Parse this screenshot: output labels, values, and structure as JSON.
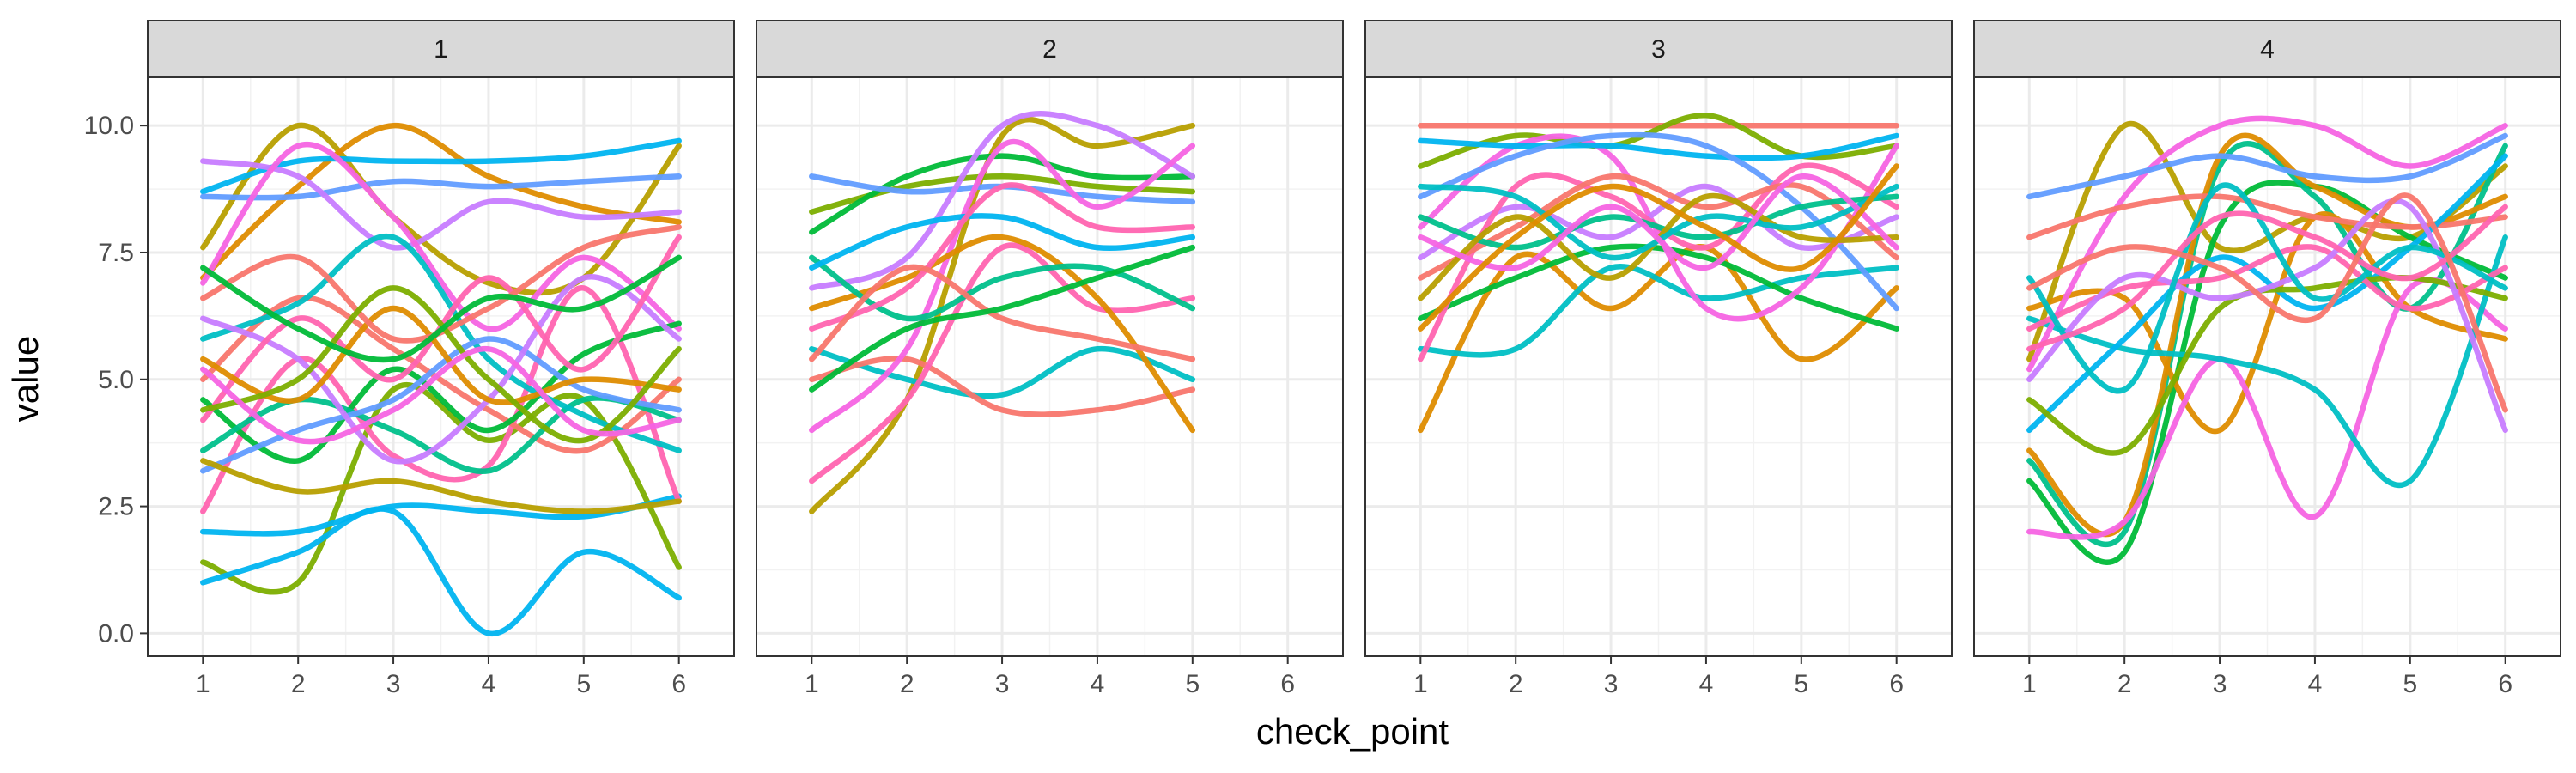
{
  "chart_data": {
    "type": "line",
    "facet_variable": "group",
    "xlabel": "check_point",
    "ylabel": "value",
    "x_ticks": [
      "1",
      "2",
      "3",
      "4",
      "5",
      "6"
    ],
    "y_ticks": [
      "0.0",
      "2.5",
      "5.0",
      "7.5",
      "10.0"
    ],
    "xlim": [
      0.42,
      6.58
    ],
    "ylim": [
      -0.45,
      10.95
    ],
    "grid": true,
    "smoothing": "spline",
    "legend": "none",
    "colors": [
      "#F8766D",
      "#DE8C00",
      "#B79F00",
      "#7CAE00",
      "#00BA38",
      "#00C08B",
      "#00BFC4",
      "#00B4F0",
      "#619CFF",
      "#C77CFF",
      "#F564E3",
      "#FF64B0"
    ],
    "strip_fill": "#d9d9d9",
    "panel_border": "#333333",
    "facets": [
      {
        "label": "1",
        "x": [
          1,
          2,
          3,
          4,
          5,
          6
        ],
        "series": [
          {
            "color": "#B79F00",
            "values": [
              7.6,
              10.0,
              8.2,
              6.9,
              7.0,
              9.6
            ]
          },
          {
            "color": "#DE8C00",
            "values": [
              7.0,
              8.8,
              10.0,
              9.0,
              8.4,
              8.1
            ]
          },
          {
            "color": "#7CAE00",
            "values": [
              1.4,
              1.0,
              4.8,
              3.8,
              4.6,
              1.3
            ]
          },
          {
            "color": "#00B4F0",
            "values": [
              1.0,
              1.6,
              2.4,
              0.0,
              1.6,
              0.7
            ]
          },
          {
            "color": "#00B4F0",
            "values": [
              2.0,
              2.0,
              2.5,
              2.4,
              2.3,
              2.7
            ]
          },
          {
            "color": "#00B4F0",
            "values": [
              8.7,
              9.3,
              9.3,
              9.3,
              9.4,
              9.7
            ]
          },
          {
            "color": "#619CFF",
            "values": [
              8.6,
              8.6,
              8.9,
              8.8,
              8.9,
              9.0
            ]
          },
          {
            "color": "#C77CFF",
            "values": [
              9.3,
              9.0,
              7.6,
              8.5,
              8.2,
              8.3
            ]
          },
          {
            "color": "#F564E3",
            "values": [
              6.9,
              9.6,
              8.2,
              6.0,
              7.4,
              6.0
            ]
          },
          {
            "color": "#FF64B0",
            "values": [
              2.4,
              5.4,
              3.5,
              3.3,
              6.8,
              2.6
            ]
          },
          {
            "color": "#F8766D",
            "values": [
              5.0,
              6.6,
              5.6,
              4.4,
              3.6,
              5.0
            ]
          },
          {
            "color": "#00BA38",
            "values": [
              4.6,
              3.4,
              5.2,
              4.0,
              5.5,
              6.1
            ]
          },
          {
            "color": "#00C08B",
            "values": [
              3.6,
              4.6,
              4.0,
              3.2,
              4.6,
              4.2
            ]
          },
          {
            "color": "#00BFC4",
            "values": [
              5.8,
              6.5,
              7.8,
              5.4,
              4.3,
              3.6
            ]
          },
          {
            "color": "#619CFF",
            "values": [
              3.2,
              4.0,
              4.6,
              5.8,
              4.8,
              4.4
            ]
          },
          {
            "color": "#C77CFF",
            "values": [
              6.2,
              5.4,
              3.4,
              4.6,
              7.0,
              5.8
            ]
          },
          {
            "color": "#FF64B0",
            "values": [
              4.2,
              6.2,
              5.0,
              7.0,
              5.2,
              7.8
            ]
          },
          {
            "color": "#B79F00",
            "values": [
              3.4,
              2.8,
              3.0,
              2.6,
              2.4,
              2.6
            ]
          },
          {
            "color": "#DE8C00",
            "values": [
              5.4,
              4.6,
              6.4,
              4.6,
              5.0,
              4.8
            ]
          },
          {
            "color": "#F8766D",
            "values": [
              6.6,
              7.4,
              5.8,
              6.4,
              7.6,
              8.0
            ]
          },
          {
            "color": "#7CAE00",
            "values": [
              4.4,
              5.0,
              6.8,
              5.0,
              3.8,
              5.6
            ]
          },
          {
            "color": "#F564E3",
            "values": [
              5.2,
              3.8,
              4.4,
              5.6,
              4.0,
              4.2
            ]
          },
          {
            "color": "#00BA38",
            "values": [
              7.2,
              6.0,
              5.4,
              6.6,
              6.4,
              7.4
            ]
          }
        ]
      },
      {
        "label": "2",
        "x": [
          1,
          2,
          3,
          4,
          5
        ],
        "series": [
          {
            "color": "#B79F00",
            "values": [
              2.4,
              4.6,
              9.8,
              9.6,
              10.0
            ]
          },
          {
            "color": "#7CAE00",
            "values": [
              8.3,
              8.8,
              9.0,
              8.8,
              8.7
            ]
          },
          {
            "color": "#00BA38",
            "values": [
              7.9,
              9.0,
              9.4,
              9.0,
              9.0
            ]
          },
          {
            "color": "#619CFF",
            "values": [
              9.0,
              8.7,
              8.8,
              8.6,
              8.5
            ]
          },
          {
            "color": "#00BFC4",
            "values": [
              5.6,
              5.0,
              4.7,
              5.6,
              5.0
            ]
          },
          {
            "color": "#F8766D",
            "values": [
              5.0,
              5.4,
              4.4,
              4.4,
              4.8
            ]
          },
          {
            "color": "#FF64B0",
            "values": [
              3.0,
              4.6,
              7.6,
              6.4,
              6.6
            ]
          },
          {
            "color": "#C77CFF",
            "values": [
              6.8,
              7.4,
              10.0,
              10.0,
              9.0
            ]
          },
          {
            "color": "#F564E3",
            "values": [
              4.0,
              5.6,
              9.6,
              8.4,
              9.6
            ]
          },
          {
            "color": "#DE8C00",
            "values": [
              6.4,
              7.0,
              7.8,
              6.6,
              4.0
            ]
          },
          {
            "color": "#00C08B",
            "values": [
              7.4,
              6.2,
              7.0,
              7.2,
              6.4
            ]
          },
          {
            "color": "#00B4F0",
            "values": [
              7.2,
              8.0,
              8.2,
              7.6,
              7.8
            ]
          },
          {
            "color": "#FF64B0",
            "values": [
              6.0,
              6.8,
              8.8,
              8.0,
              8.0
            ]
          },
          {
            "color": "#F8766D",
            "values": [
              5.4,
              7.2,
              6.2,
              5.8,
              5.4
            ]
          },
          {
            "color": "#00BA38",
            "values": [
              4.8,
              6.0,
              6.4,
              7.0,
              7.6
            ]
          }
        ]
      },
      {
        "label": "3",
        "x": [
          1,
          2,
          3,
          4,
          5,
          6
        ],
        "series": [
          {
            "color": "#F8766D",
            "values": [
              10.0,
              10.0,
              10.0,
              10.0,
              10.0,
              10.0
            ]
          },
          {
            "color": "#DE8C00",
            "values": [
              4.0,
              7.4,
              6.4,
              7.6,
              5.4,
              6.8
            ]
          },
          {
            "color": "#00BFC4",
            "values": [
              5.6,
              5.6,
              7.2,
              6.6,
              7.0,
              7.2
            ]
          },
          {
            "color": "#00BA38",
            "values": [
              6.2,
              7.0,
              7.6,
              7.4,
              6.6,
              6.0
            ]
          },
          {
            "color": "#7CAE00",
            "values": [
              9.2,
              9.8,
              9.6,
              10.2,
              9.4,
              9.6
            ]
          },
          {
            "color": "#F564E3",
            "values": [
              8.0,
              9.6,
              9.4,
              6.4,
              6.8,
              9.6
            ]
          },
          {
            "color": "#00B4F0",
            "values": [
              9.7,
              9.6,
              9.6,
              9.4,
              9.4,
              9.8
            ]
          },
          {
            "color": "#619CFF",
            "values": [
              8.6,
              9.4,
              9.8,
              9.6,
              8.4,
              6.4
            ]
          },
          {
            "color": "#C77CFF",
            "values": [
              7.4,
              8.4,
              7.8,
              8.8,
              7.6,
              8.2
            ]
          },
          {
            "color": "#FF64B0",
            "values": [
              5.4,
              8.8,
              8.6,
              7.6,
              9.2,
              8.4
            ]
          },
          {
            "color": "#F8766D",
            "values": [
              7.0,
              8.0,
              9.0,
              8.4,
              8.8,
              7.4
            ]
          },
          {
            "color": "#00C08B",
            "values": [
              8.2,
              7.6,
              8.2,
              7.8,
              8.4,
              8.6
            ]
          },
          {
            "color": "#B79F00",
            "values": [
              6.6,
              8.2,
              7.0,
              8.6,
              7.8,
              7.8
            ]
          },
          {
            "color": "#00BFC4",
            "values": [
              8.8,
              8.6,
              7.4,
              8.2,
              8.0,
              8.8
            ]
          },
          {
            "color": "#F564E3",
            "values": [
              7.8,
              7.2,
              8.4,
              7.2,
              9.0,
              7.6
            ]
          },
          {
            "color": "#DE8C00",
            "values": [
              6.0,
              7.8,
              8.8,
              8.0,
              7.2,
              9.2
            ]
          }
        ]
      },
      {
        "label": "4",
        "x": [
          1,
          2,
          3,
          4,
          5,
          6
        ],
        "series": [
          {
            "color": "#B79F00",
            "values": [
              5.4,
              10.0,
              7.6,
              8.2,
              7.8,
              9.2
            ]
          },
          {
            "color": "#00BA38",
            "values": [
              3.0,
              1.6,
              8.0,
              8.8,
              7.8,
              7.0
            ]
          },
          {
            "color": "#00C08B",
            "values": [
              3.4,
              2.0,
              9.2,
              8.6,
              6.4,
              9.6
            ]
          },
          {
            "color": "#DE8C00",
            "values": [
              3.6,
              2.2,
              9.4,
              8.8,
              8.0,
              8.6
            ]
          },
          {
            "color": "#DE8C00",
            "values": [
              6.4,
              6.6,
              4.0,
              8.2,
              6.4,
              5.8
            ]
          },
          {
            "color": "#F564E3",
            "values": [
              2.0,
              2.2,
              5.4,
              2.3,
              6.8,
              6.0
            ]
          },
          {
            "color": "#00BFC4",
            "values": [
              6.2,
              5.6,
              5.4,
              4.8,
              3.0,
              7.8
            ]
          },
          {
            "color": "#F564E3",
            "values": [
              5.2,
              8.6,
              10.0,
              10.0,
              9.2,
              10.0
            ]
          },
          {
            "color": "#619CFF",
            "values": [
              8.6,
              9.0,
              9.4,
              9.0,
              9.0,
              9.8
            ]
          },
          {
            "color": "#F8766D",
            "values": [
              7.8,
              8.4,
              8.6,
              8.2,
              8.0,
              8.2
            ]
          },
          {
            "color": "#00B4F0",
            "values": [
              4.0,
              5.8,
              7.4,
              6.4,
              7.6,
              9.4
            ]
          },
          {
            "color": "#7CAE00",
            "values": [
              4.6,
              3.6,
              6.4,
              6.8,
              7.0,
              6.6
            ]
          },
          {
            "color": "#FF64B0",
            "values": [
              6.0,
              6.8,
              7.0,
              7.6,
              6.4,
              7.2
            ]
          },
          {
            "color": "#C77CFF",
            "values": [
              5.0,
              7.0,
              6.6,
              7.2,
              8.4,
              4.0
            ]
          },
          {
            "color": "#00BFC4",
            "values": [
              7.0,
              4.8,
              8.8,
              6.6,
              7.6,
              6.8
            ]
          },
          {
            "color": "#FF64B0",
            "values": [
              5.6,
              6.4,
              8.2,
              7.8,
              7.0,
              8.4
            ]
          },
          {
            "color": "#F8766D",
            "values": [
              6.8,
              7.6,
              7.2,
              6.2,
              8.6,
              4.4
            ]
          }
        ]
      }
    ]
  }
}
